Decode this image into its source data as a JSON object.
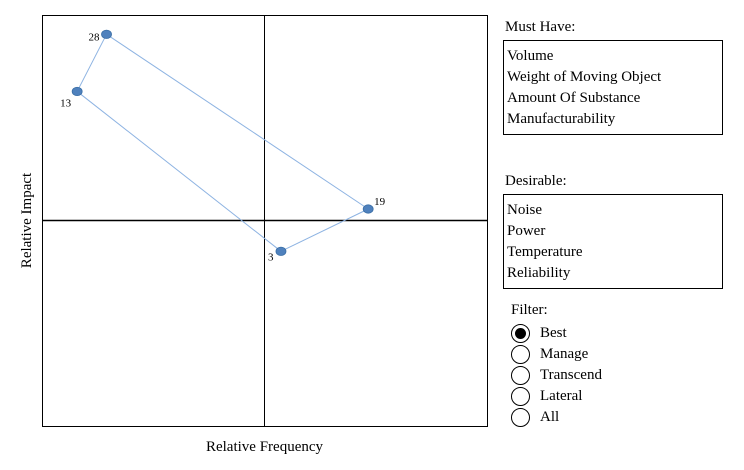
{
  "chart_data": {
    "type": "scatter",
    "xlabel": "Relative Frequency",
    "ylabel": "Relative Impact",
    "xlim": [
      0,
      100
    ],
    "ylim": [
      0,
      100
    ],
    "grid": false,
    "quadrant_lines": {
      "x": 50,
      "y": 50
    },
    "points": [
      {
        "label": "28",
        "x": 14.5,
        "y": 95.3
      },
      {
        "label": "19",
        "x": 73.3,
        "y": 52.8
      },
      {
        "label": "3",
        "x": 53.7,
        "y": 42.5
      },
      {
        "label": "13",
        "x": 7.9,
        "y": 81.4
      }
    ],
    "connect_order": [
      "28",
      "19",
      "3",
      "13",
      "28"
    ],
    "colors": {
      "point": "#4f81bd",
      "line": "#8db3e2"
    }
  },
  "must_have": {
    "heading": "Must Have:",
    "items": [
      "Volume",
      "Weight of Moving Object",
      "Amount Of Substance",
      "Manufacturability"
    ]
  },
  "desirable": {
    "heading": "Desirable:",
    "items": [
      "Noise",
      "Power",
      "Temperature",
      "Reliability"
    ]
  },
  "filter": {
    "title": "Filter:",
    "selected": "Best",
    "options": [
      "Best",
      "Manage",
      "Transcend",
      "Lateral",
      "All"
    ]
  }
}
